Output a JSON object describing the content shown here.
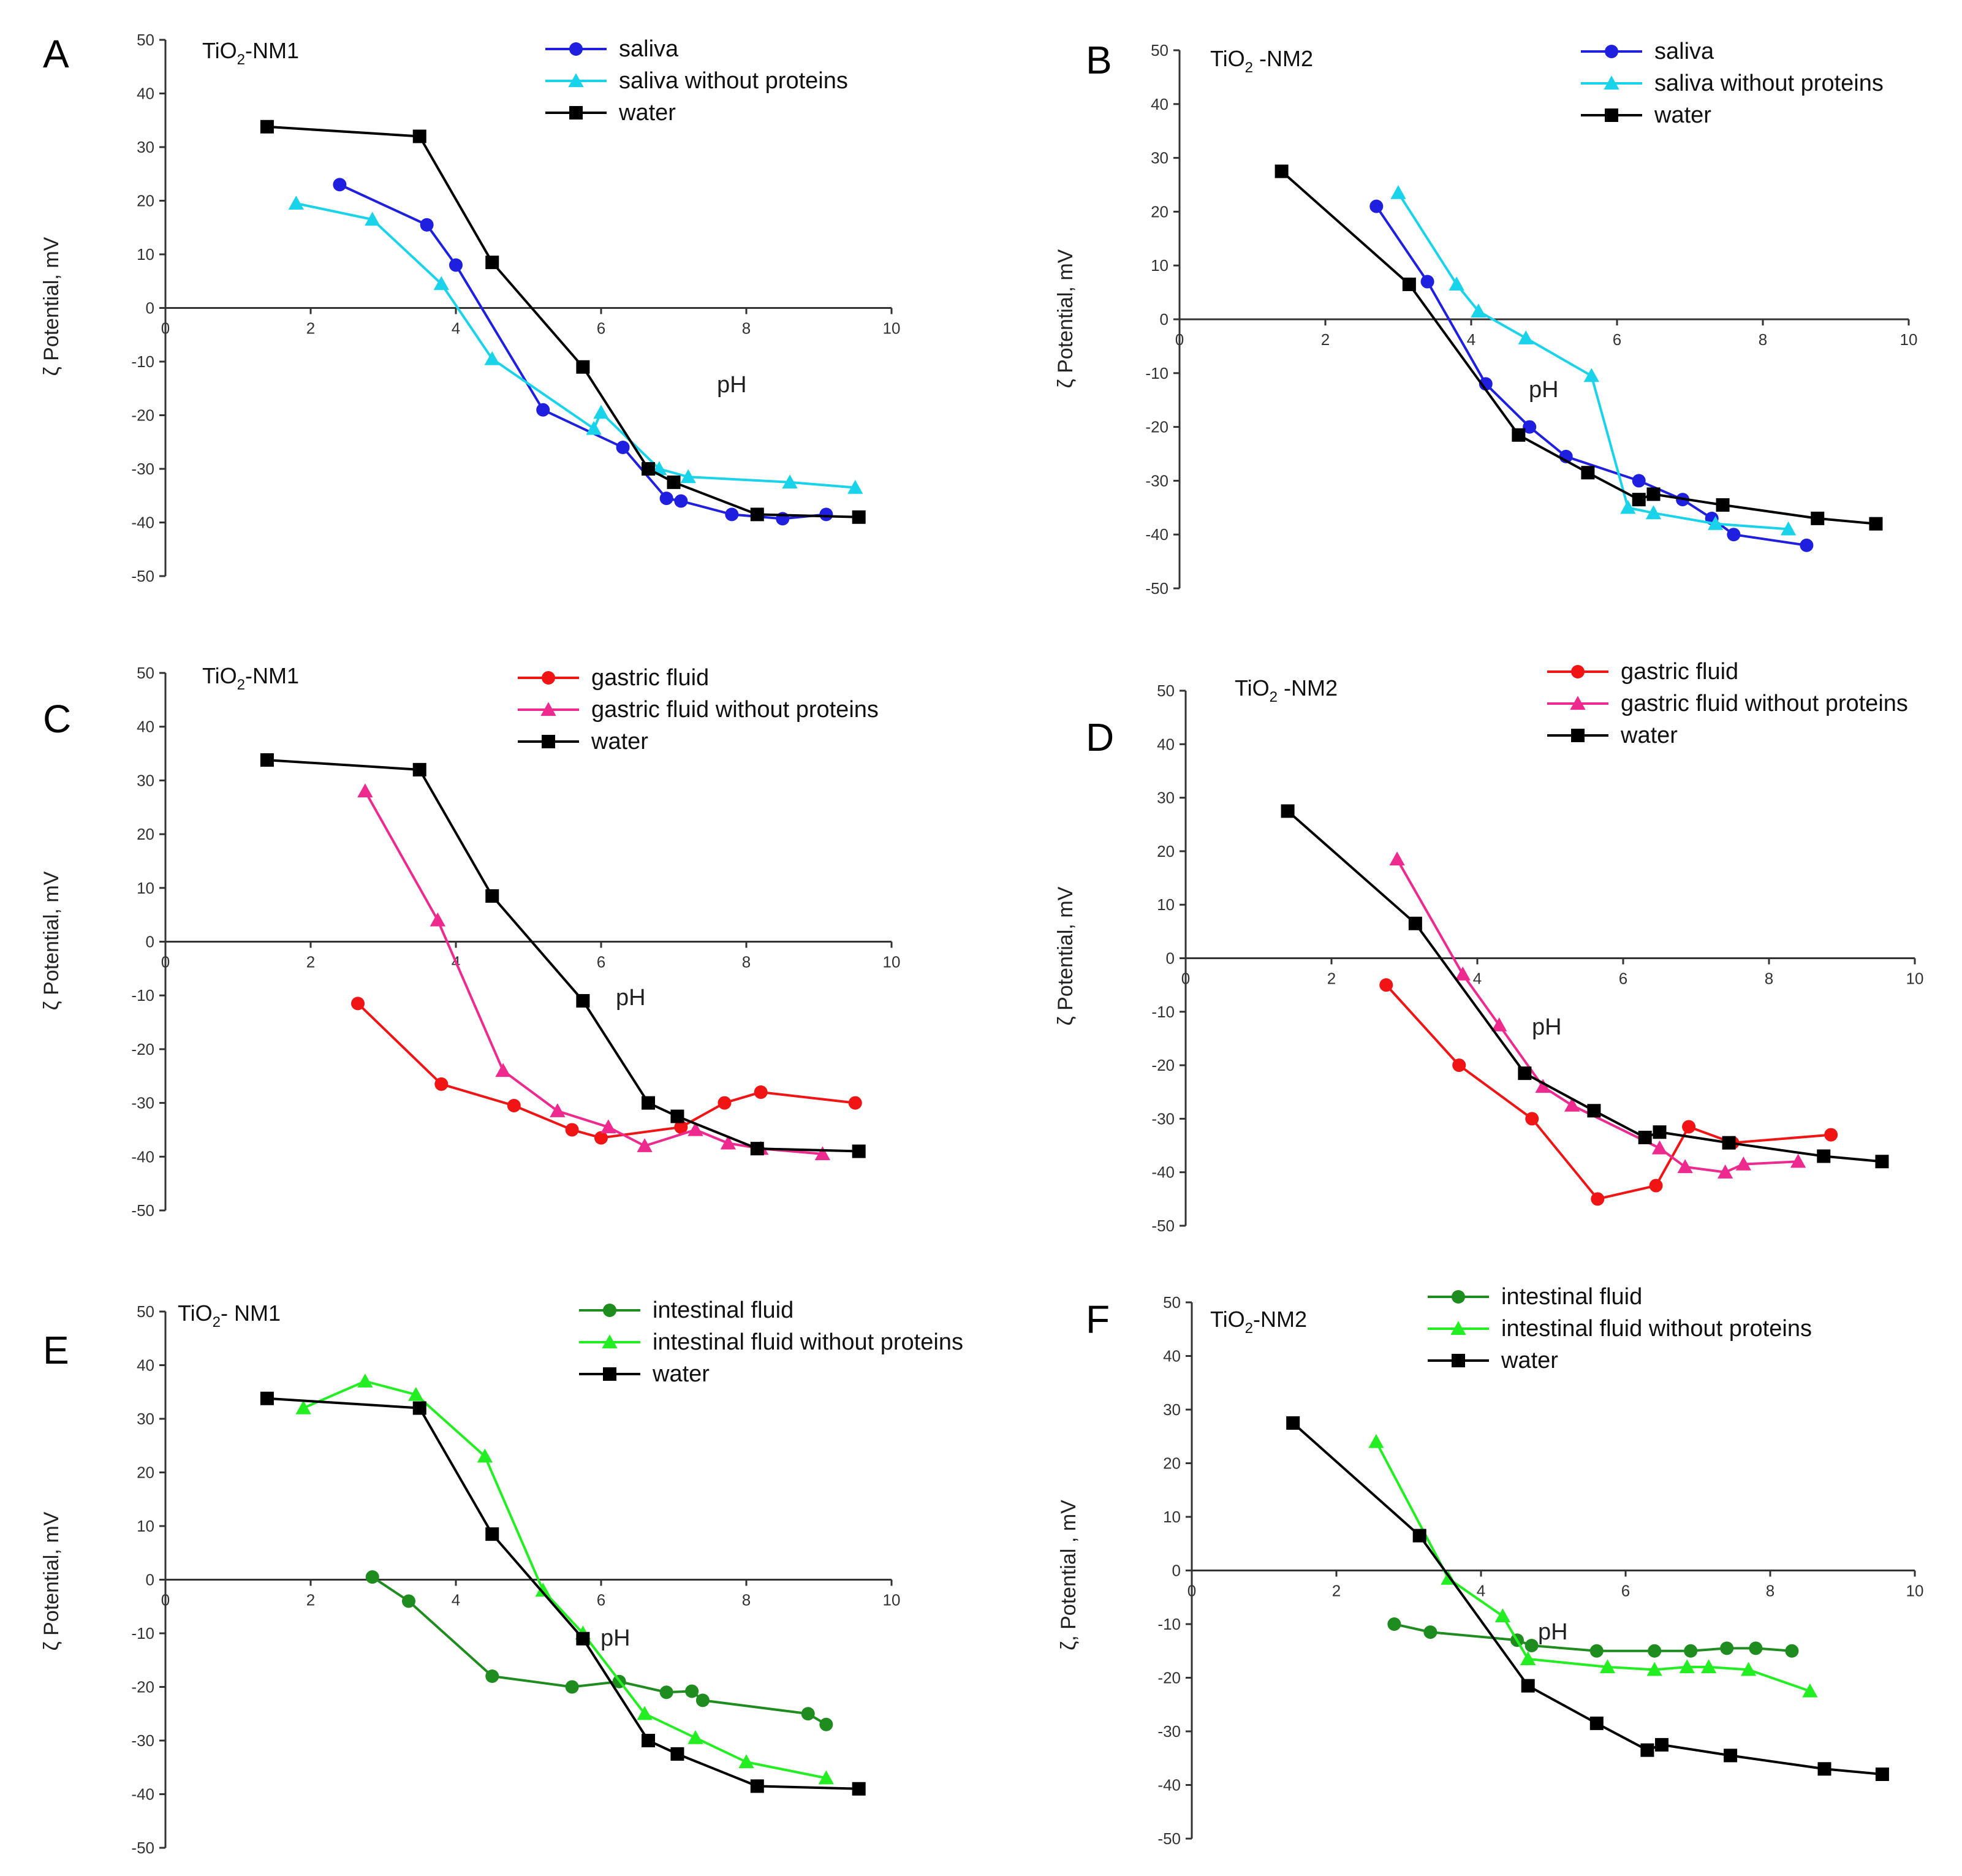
{
  "figure": {
    "panels": [
      "A",
      "B",
      "C",
      "D",
      "E",
      "F"
    ]
  },
  "chart_data": [
    {
      "id": "A",
      "panel_label": "A",
      "type": "line",
      "title_main": "TiO",
      "title_sub": "2",
      "title_rest": "-NM1",
      "xlabel": "pH",
      "ylabel": "ζ Potential, mV",
      "xlim": [
        0,
        10
      ],
      "ylim": [
        -50,
        50
      ],
      "xticks": [
        0,
        2,
        4,
        6,
        8,
        10
      ],
      "yticks": [
        50,
        40,
        30,
        20,
        10,
        0,
        -10,
        -20,
        -30,
        -40,
        -50
      ],
      "legend": "top-right",
      "series": [
        {
          "name": "saliva",
          "color": "#1f1fe0",
          "marker": "circle",
          "x": [
            2.4,
            3.6,
            4.0,
            5.2,
            6.3,
            6.9,
            7.1,
            7.8,
            8.5,
            9.1
          ],
          "y": [
            23,
            15.5,
            8,
            -19,
            -26,
            -35.5,
            -36,
            -38.5,
            -39.3,
            -38.5
          ]
        },
        {
          "name": "saliva without proteins",
          "color": "#19d3ea",
          "marker": "triangle",
          "x": [
            1.8,
            2.85,
            3.8,
            4.5,
            5.9,
            6.0,
            6.8,
            7.2,
            8.6,
            9.5
          ],
          "y": [
            19.5,
            16.5,
            4.5,
            -9.5,
            -22.5,
            -19.5,
            -30,
            -31.5,
            -32.5,
            -33.5
          ]
        },
        {
          "name": "water",
          "color": "#000000",
          "marker": "square",
          "x": [
            1.4,
            3.5,
            4.5,
            5.75,
            6.65,
            7.0,
            8.15,
            9.55
          ],
          "y": [
            33.8,
            32,
            8.5,
            -11,
            -30,
            -32.5,
            -38.5,
            -39
          ]
        }
      ]
    },
    {
      "id": "B",
      "panel_label": "B",
      "type": "line",
      "title_main": "TiO",
      "title_sub": "2",
      "title_rest": " -NM2",
      "xlabel": "pH",
      "ylabel": "ζ Potential, mV",
      "xlim": [
        0,
        10
      ],
      "ylim": [
        -50,
        50
      ],
      "xticks": [
        0,
        2,
        4,
        6,
        8,
        10
      ],
      "yticks": [
        50,
        40,
        30,
        20,
        10,
        0,
        -10,
        -20,
        -30,
        -40,
        -50
      ],
      "legend": "top-right",
      "series": [
        {
          "name": "saliva",
          "color": "#1f1fe0",
          "marker": "circle",
          "x": [
            2.7,
            3.4,
            4.2,
            4.8,
            5.3,
            6.3,
            6.9,
            7.3,
            7.6,
            8.6
          ],
          "y": [
            21,
            7,
            -12,
            -20,
            -25.5,
            -30,
            -33.5,
            -37,
            -40,
            -42
          ]
        },
        {
          "name": "saliva without proteins",
          "color": "#19d3ea",
          "marker": "triangle",
          "x": [
            3.0,
            3.8,
            4.1,
            4.75,
            5.65,
            6.15,
            6.5,
            7.35,
            8.35
          ],
          "y": [
            23.5,
            6.5,
            1.5,
            -3.5,
            -10.5,
            -35,
            -36,
            -38,
            -39
          ]
        },
        {
          "name": "water",
          "color": "#000000",
          "marker": "square",
          "x": [
            1.4,
            3.15,
            4.65,
            5.6,
            6.3,
            6.5,
            7.45,
            8.75,
            9.55
          ],
          "y": [
            27.5,
            6.5,
            -21.5,
            -28.5,
            -33.5,
            -32.5,
            -34.5,
            -37,
            -38
          ]
        }
      ]
    },
    {
      "id": "C",
      "panel_label": "C",
      "type": "line",
      "title_main": "TiO",
      "title_sub": "2",
      "title_rest": "-NM1",
      "xlabel": "pH",
      "ylabel": "ζ Potential, mV",
      "xlim": [
        0,
        10
      ],
      "ylim": [
        -50,
        50
      ],
      "xticks": [
        0,
        2,
        4,
        6,
        8,
        10
      ],
      "yticks": [
        50,
        40,
        30,
        20,
        10,
        0,
        -10,
        -20,
        -30,
        -40,
        -50
      ],
      "legend": "top-right",
      "series": [
        {
          "name": "gastric fluid",
          "color": "#f01414",
          "marker": "circle",
          "x": [
            2.65,
            3.8,
            4.8,
            5.6,
            6.0,
            7.1,
            7.7,
            8.2,
            9.5
          ],
          "y": [
            -11.5,
            -26.5,
            -30.5,
            -35,
            -36.5,
            -34.5,
            -30,
            -28,
            -30
          ]
        },
        {
          "name": "gastric fluid without proteins",
          "color": "#ee2a8e",
          "marker": "triangle",
          "x": [
            2.75,
            3.75,
            4.65,
            5.4,
            6.1,
            6.6,
            7.3,
            7.75,
            8.2,
            9.05
          ],
          "y": [
            28,
            4,
            -24,
            -31.5,
            -34.5,
            -38,
            -35,
            -37.5,
            -38.5,
            -39.5
          ]
        },
        {
          "name": "water",
          "color": "#000000",
          "marker": "square",
          "x": [
            1.4,
            3.5,
            4.5,
            5.75,
            6.65,
            7.05,
            8.15,
            9.55
          ],
          "y": [
            33.8,
            32,
            8.5,
            -11,
            -30,
            -32.5,
            -38.5,
            -39
          ]
        }
      ]
    },
    {
      "id": "D",
      "panel_label": "D",
      "type": "line",
      "title_main": "TiO",
      "title_sub": "2",
      "title_rest": " -NM2",
      "xlabel": "pH",
      "ylabel": "ζ Potential, mV",
      "xlim": [
        0,
        10
      ],
      "ylim": [
        -50,
        50
      ],
      "xticks": [
        0,
        2,
        4,
        6,
        8,
        10
      ],
      "yticks": [
        50,
        40,
        30,
        20,
        10,
        0,
        -10,
        -20,
        -30,
        -40,
        -50
      ],
      "legend": "top-right",
      "series": [
        {
          "name": "gastric fluid",
          "color": "#f01414",
          "marker": "circle",
          "x": [
            2.75,
            3.75,
            4.75,
            5.65,
            6.45,
            6.9,
            7.5,
            8.85
          ],
          "y": [
            -5,
            -20,
            -30,
            -45,
            -42.5,
            -31.5,
            -34.5,
            -33
          ]
        },
        {
          "name": "gastric fluid without proteins",
          "color": "#ee2a8e",
          "marker": "triangle",
          "x": [
            2.9,
            3.8,
            4.3,
            4.9,
            5.3,
            6.5,
            6.85,
            7.4,
            7.65,
            8.4
          ],
          "y": [
            18.5,
            -3,
            -12.5,
            -24,
            -27.5,
            -35.5,
            -39,
            -40,
            -38.5,
            -38
          ]
        },
        {
          "name": "water",
          "color": "#000000",
          "marker": "square",
          "x": [
            1.4,
            3.15,
            4.65,
            5.6,
            6.3,
            6.5,
            7.45,
            8.75,
            9.55
          ],
          "y": [
            27.5,
            6.5,
            -21.5,
            -28.5,
            -33.5,
            -32.5,
            -34.5,
            -37,
            -38
          ]
        }
      ]
    },
    {
      "id": "E",
      "panel_label": "E",
      "type": "line",
      "title_main": "TiO",
      "title_sub": "2",
      "title_rest": "- NM1",
      "xlabel": "pH",
      "ylabel": "ζ Potential, mV",
      "xlim": [
        0,
        10
      ],
      "ylim": [
        -50,
        50
      ],
      "xticks": [
        0,
        2,
        4,
        6,
        8,
        10
      ],
      "yticks": [
        50,
        40,
        30,
        20,
        10,
        0,
        -10,
        -20,
        -30,
        -40,
        -50
      ],
      "legend": "top-right",
      "series": [
        {
          "name": "intestinal fluid",
          "color": "#1e8c1e",
          "marker": "circle",
          "x": [
            2.85,
            3.35,
            4.5,
            5.6,
            6.25,
            6.9,
            7.25,
            7.4,
            8.85,
            9.1
          ],
          "y": [
            0.5,
            -4,
            -18,
            -20,
            -19,
            -21,
            -20.8,
            -22.5,
            -25,
            -27
          ]
        },
        {
          "name": "intestinal fluid without proteins",
          "color": "#22ee22",
          "marker": "triangle",
          "x": [
            1.9,
            2.75,
            3.45,
            4.4,
            5.2,
            5.75,
            6.6,
            7.3,
            8.0,
            9.1
          ],
          "y": [
            32,
            37,
            34.5,
            23,
            -2,
            -10,
            -25,
            -29.5,
            -34,
            -37
          ]
        },
        {
          "name": "water",
          "color": "#000000",
          "marker": "square",
          "x": [
            1.4,
            3.5,
            4.5,
            5.75,
            6.65,
            7.05,
            8.15,
            9.55
          ],
          "y": [
            33.8,
            32,
            8.5,
            -11,
            -30,
            -32.5,
            -38.5,
            -39
          ]
        }
      ]
    },
    {
      "id": "F",
      "panel_label": "F",
      "type": "line",
      "title_main": "TiO",
      "title_sub": "2",
      "title_rest": "-NM2",
      "xlabel": "pH",
      "ylabel": "ζ, Potential , mV",
      "xlim": [
        0,
        10
      ],
      "ylim": [
        -50,
        50
      ],
      "xticks": [
        0,
        2,
        4,
        6,
        8,
        10
      ],
      "yticks": [
        50,
        40,
        30,
        20,
        10,
        0,
        -10,
        -20,
        -30,
        -40,
        -50
      ],
      "legend": "top-left",
      "series": [
        {
          "name": "intestinal fluid",
          "color": "#1e8c1e",
          "marker": "circle",
          "x": [
            2.8,
            3.3,
            4.5,
            4.7,
            5.6,
            6.4,
            6.9,
            7.4,
            7.8,
            8.3
          ],
          "y": [
            -10,
            -11.5,
            -13,
            -14,
            -15,
            -15,
            -15,
            -14.5,
            -14.5,
            -15
          ]
        },
        {
          "name": "intestinal fluid without proteins",
          "color": "#22ee22",
          "marker": "triangle",
          "x": [
            2.55,
            3.55,
            4.3,
            4.65,
            5.75,
            6.4,
            6.85,
            7.15,
            7.7,
            8.55
          ],
          "y": [
            24,
            -1.5,
            -8.5,
            -16.5,
            -18,
            -18.5,
            -18,
            -18,
            -18.5,
            -22.5
          ]
        },
        {
          "name": "water",
          "color": "#000000",
          "marker": "square",
          "x": [
            1.4,
            3.15,
            4.65,
            5.6,
            6.3,
            6.5,
            7.45,
            8.75,
            9.55
          ],
          "y": [
            27.5,
            6.5,
            -21.5,
            -28.5,
            -33.5,
            -32.5,
            -34.5,
            -37,
            -38
          ]
        }
      ]
    }
  ]
}
